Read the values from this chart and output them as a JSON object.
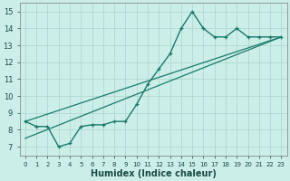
{
  "xlabel": "Humidex (Indice chaleur)",
  "bg_color": "#cceee8",
  "grid_color": "#b0d8d2",
  "line_color": "#1a7a6a",
  "x_data": [
    0,
    1,
    2,
    3,
    4,
    5,
    6,
    7,
    8,
    9,
    10,
    11,
    12,
    13,
    14,
    15,
    16,
    17,
    18,
    19,
    20,
    21,
    22,
    23
  ],
  "y_main": [
    8.5,
    8.2,
    8.2,
    7.0,
    7.2,
    8.2,
    8.3,
    8.3,
    8.5,
    8.5,
    9.5,
    10.7,
    11.6,
    12.5,
    14.0,
    15.0,
    14.0,
    13.5,
    13.5,
    14.0,
    13.5,
    13.5,
    13.5,
    13.5
  ],
  "y_reg1_start": 8.5,
  "y_reg1_end": 13.5,
  "y_reg2_start": 7.5,
  "y_reg2_end": 13.5,
  "xlim": [
    -0.5,
    23.5
  ],
  "ylim": [
    6.5,
    15.5
  ],
  "yticks": [
    7,
    8,
    9,
    10,
    11,
    12,
    13,
    14,
    15
  ],
  "xticks": [
    0,
    1,
    2,
    3,
    4,
    5,
    6,
    7,
    8,
    9,
    10,
    11,
    12,
    13,
    14,
    15,
    16,
    17,
    18,
    19,
    20,
    21,
    22,
    23
  ],
  "ylabel_fontsize": 6,
  "xlabel_fontsize": 7,
  "tick_fontsize": 5
}
